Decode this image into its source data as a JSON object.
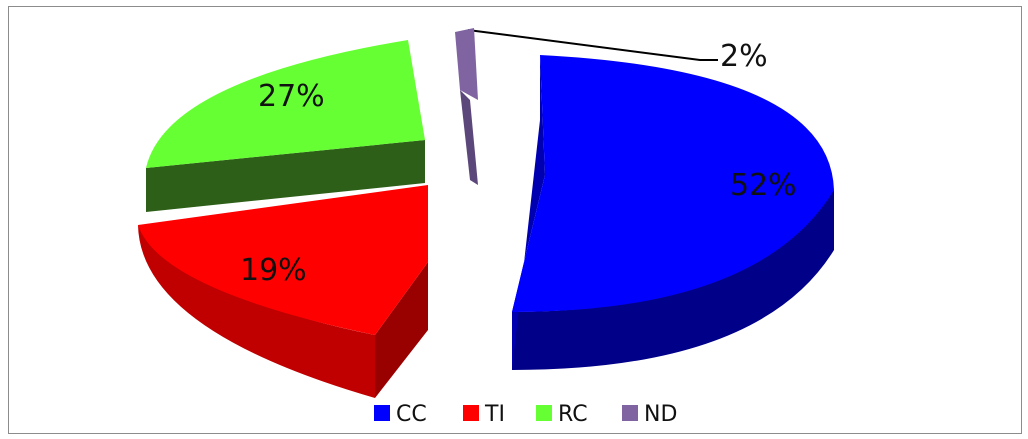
{
  "chart_data": {
    "type": "pie",
    "title": "",
    "categories": [
      "CC",
      "TI",
      "RC",
      "ND"
    ],
    "values": [
      52,
      19,
      27,
      2
    ],
    "labels": [
      "52%",
      "19%",
      "27%",
      "2%"
    ],
    "colors": [
      "#0000ff",
      "#ff0000",
      "#66ff33",
      "#8064a2"
    ],
    "legend": {
      "position": "bottom"
    },
    "style": "3d-exploded"
  }
}
